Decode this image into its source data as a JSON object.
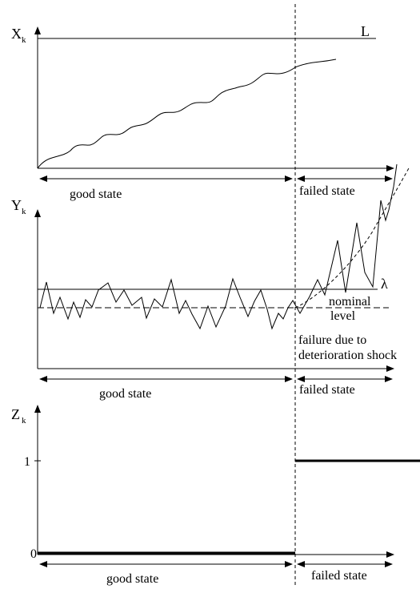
{
  "panels": {
    "x": {
      "axis_label": "X",
      "axis_sub": "k",
      "threshold_label": "L",
      "good_state": "good state",
      "failed_state": "failed state"
    },
    "y": {
      "axis_label": "Y",
      "axis_sub": "k",
      "threshold_label": "λ",
      "nominal_line1": "nominal",
      "nominal_line2": "level",
      "failure_line1": "failure due to",
      "failure_line2": "deterioration shock",
      "good_state": "good state",
      "failed_state": "failed state"
    },
    "z": {
      "axis_label": "Z",
      "axis_sub": "k",
      "tick_one": "1",
      "tick_zero": "0",
      "good_state": "good state",
      "failed_state": "failed state"
    }
  }
}
